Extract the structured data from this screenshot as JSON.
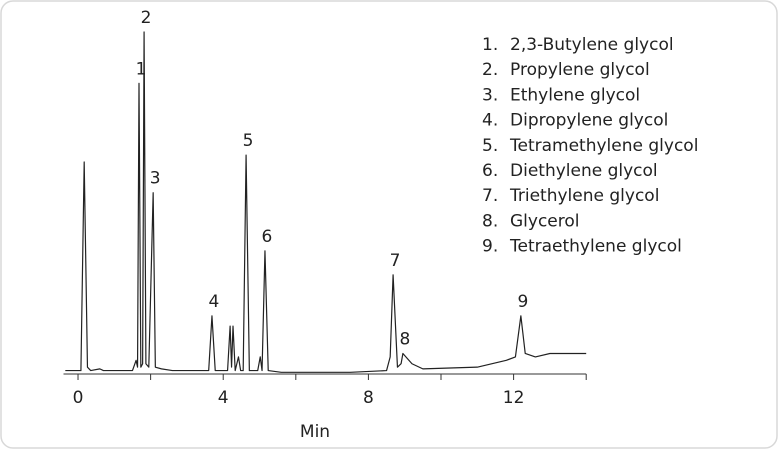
{
  "chart_data": {
    "type": "line",
    "x_label": "Min",
    "xlim": [
      -0.4,
      14
    ],
    "xticks": [
      0,
      4,
      8,
      12
    ],
    "xminorticks": [
      2,
      6,
      10,
      14
    ],
    "ylim": [
      0,
      100
    ],
    "color": "#222222",
    "x": [
      -0.35,
      0.08,
      0.17,
      0.26,
      0.35,
      0.6,
      0.7,
      1.5,
      1.6,
      1.64,
      1.68,
      1.73,
      1.78,
      1.82,
      1.87,
      1.95,
      2.07,
      2.13,
      2.3,
      2.6,
      3.6,
      3.69,
      3.78,
      4.12,
      4.19,
      4.23,
      4.27,
      4.33,
      4.42,
      4.48,
      4.55,
      4.63,
      4.72,
      4.95,
      5.02,
      5.07,
      5.15,
      5.24,
      5.6,
      7.5,
      8.5,
      8.6,
      8.68,
      8.8,
      8.9,
      8.95,
      9.2,
      9.5,
      11,
      11.8,
      12.05,
      12.2,
      12.32,
      12.6,
      13.0,
      13.4,
      14
    ],
    "values": [
      1,
      1,
      62,
      2,
      1,
      1.5,
      1,
      1,
      4,
      2,
      85,
      2,
      3,
      100,
      3,
      2,
      53,
      2,
      1.5,
      1,
      1,
      17,
      1,
      1,
      14,
      2,
      14,
      1,
      5,
      1,
      1,
      64,
      1,
      1,
      5,
      1,
      36,
      1,
      0.5,
      0.5,
      1,
      5,
      29,
      2,
      3,
      6,
      3,
      1.5,
      2,
      4,
      5,
      17,
      6,
      5,
      6,
      6,
      6
    ],
    "peaks": [
      {
        "label": "1",
        "x": 1.68,
        "y": 85
      },
      {
        "label": "2",
        "x": 1.82,
        "y": 100
      },
      {
        "label": "3",
        "x": 2.07,
        "y": 53
      },
      {
        "label": "4",
        "x": 3.69,
        "y": 17
      },
      {
        "label": "5",
        "x": 4.63,
        "y": 64
      },
      {
        "label": "6",
        "x": 5.15,
        "y": 36
      },
      {
        "label": "7",
        "x": 8.68,
        "y": 29
      },
      {
        "label": "8",
        "x": 8.95,
        "y": 6
      },
      {
        "label": "9",
        "x": 12.2,
        "y": 17
      }
    ],
    "legend": [
      {
        "number": "1.",
        "name": "2,3-Butylene glycol"
      },
      {
        "number": "2.",
        "name": "Propylene glycol"
      },
      {
        "number": "3.",
        "name": "Ethylene glycol"
      },
      {
        "number": "4.",
        "name": "Dipropylene glycol"
      },
      {
        "number": "5.",
        "name": "Tetramethylene glycol"
      },
      {
        "number": "6.",
        "name": "Diethylene glycol"
      },
      {
        "number": "7.",
        "name": "Triethylene glycol"
      },
      {
        "number": "8.",
        "name": "Glycerol"
      },
      {
        "number": "9.",
        "name": "Tetraethylene glycol"
      }
    ]
  }
}
